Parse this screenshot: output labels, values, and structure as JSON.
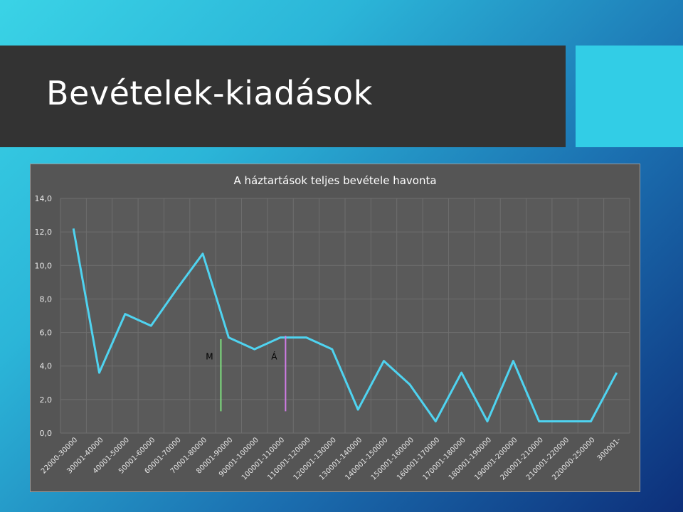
{
  "slide": {
    "title": "Bevételek-kiadások",
    "accent_color": "#32cde6",
    "title_bar_color": "#333333"
  },
  "chart_data": {
    "type": "line",
    "title": "A háztartások teljes bevétele havonta",
    "xlabel": "",
    "ylabel": "",
    "ylim": [
      0,
      14
    ],
    "yticks": [
      "0,0",
      "2,0",
      "4,0",
      "6,0",
      "8,0",
      "10,0",
      "12,0",
      "14,0"
    ],
    "grid": true,
    "categories": [
      "22000-30000",
      "30001-40000",
      "40001-50000",
      "50001-60000",
      "60001-70000",
      "70001-80000",
      "80001-90000",
      "90001-100000",
      "100001-110000",
      "110001-120000",
      "120001-130000",
      "130001-140000",
      "140001-150000",
      "150001-160000",
      "160001-170000",
      "170001-180000",
      "180001-190000",
      "190001-200000",
      "200001-210000",
      "210001-220000",
      "220000-250000",
      "300001-"
    ],
    "series": [
      {
        "color": "#4fd3f0",
        "values": [
          12.2,
          3.6,
          7.1,
          6.4,
          8.6,
          10.7,
          5.7,
          5.0,
          5.7,
          5.7,
          5.0,
          1.4,
          4.3,
          2.9,
          0.7,
          3.6,
          0.7,
          4.3,
          0.7,
          0.7,
          0.7,
          3.6
        ]
      }
    ],
    "annotations": [
      {
        "label": "M",
        "position": 6.2,
        "color": "#7ee07e",
        "y_top": 5.6,
        "y_bottom": 1.3
      },
      {
        "label": "Á",
        "position": 8.7,
        "color": "#d07ce6",
        "y_top": 5.8,
        "y_bottom": 1.3
      }
    ]
  }
}
